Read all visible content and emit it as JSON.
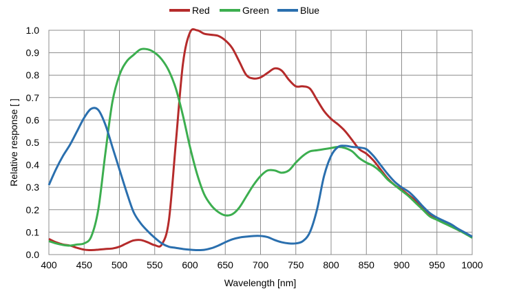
{
  "chart_data": {
    "type": "line",
    "title": "",
    "xlabel": "Wavelength [nm]",
    "ylabel": "Relative response [ ]",
    "xlim": [
      400,
      1000
    ],
    "ylim": [
      0,
      1.0
    ],
    "xticks": [
      "400",
      "450",
      "500",
      "550",
      "600",
      "650",
      "700",
      "750",
      "800",
      "850",
      "900",
      "950",
      "1000"
    ],
    "yticks": [
      "0.0",
      "0.1",
      "0.2",
      "0.3",
      "0.4",
      "0.5",
      "0.6",
      "0.7",
      "0.8",
      "0.9",
      "1.0"
    ],
    "grid": true,
    "legend_position": "top-center",
    "x": [
      400,
      410,
      420,
      430,
      440,
      450,
      460,
      470,
      480,
      490,
      500,
      510,
      520,
      530,
      540,
      550,
      560,
      570,
      580,
      590,
      600,
      610,
      620,
      630,
      640,
      650,
      660,
      670,
      680,
      690,
      700,
      710,
      720,
      730,
      740,
      750,
      760,
      770,
      780,
      790,
      800,
      810,
      820,
      830,
      840,
      850,
      860,
      870,
      880,
      890,
      900,
      910,
      920,
      930,
      940,
      950,
      960,
      970,
      980,
      990,
      1000
    ],
    "series": [
      {
        "name": "Red",
        "color": "#b52b2b",
        "values": [
          0.07,
          0.055,
          0.045,
          0.04,
          0.03,
          0.022,
          0.02,
          0.022,
          0.025,
          0.027,
          0.035,
          0.05,
          0.063,
          0.065,
          0.055,
          0.042,
          0.045,
          0.15,
          0.5,
          0.85,
          0.99,
          1.0,
          0.985,
          0.98,
          0.975,
          0.955,
          0.92,
          0.86,
          0.8,
          0.785,
          0.79,
          0.81,
          0.83,
          0.82,
          0.78,
          0.75,
          0.75,
          0.74,
          0.69,
          0.64,
          0.605,
          0.58,
          0.55,
          0.51,
          0.47,
          0.45,
          0.42,
          0.38,
          0.34,
          0.31,
          0.29,
          0.265,
          0.24,
          0.21,
          0.18,
          0.16,
          0.145,
          0.13,
          0.11,
          0.095,
          0.08
        ]
      },
      {
        "name": "Green",
        "color": "#3cae4f",
        "values": [
          0.06,
          0.05,
          0.043,
          0.04,
          0.045,
          0.05,
          0.08,
          0.2,
          0.45,
          0.68,
          0.8,
          0.86,
          0.89,
          0.915,
          0.915,
          0.9,
          0.87,
          0.82,
          0.74,
          0.62,
          0.48,
          0.36,
          0.27,
          0.22,
          0.19,
          0.175,
          0.18,
          0.21,
          0.26,
          0.31,
          0.35,
          0.375,
          0.375,
          0.365,
          0.375,
          0.41,
          0.44,
          0.46,
          0.465,
          0.47,
          0.475,
          0.48,
          0.475,
          0.46,
          0.43,
          0.41,
          0.395,
          0.37,
          0.335,
          0.31,
          0.285,
          0.26,
          0.23,
          0.2,
          0.17,
          0.155,
          0.14,
          0.125,
          0.11,
          0.093,
          0.075
        ]
      },
      {
        "name": "Blue",
        "color": "#2a6fae",
        "values": [
          0.31,
          0.38,
          0.44,
          0.49,
          0.55,
          0.61,
          0.65,
          0.645,
          0.58,
          0.48,
          0.38,
          0.28,
          0.19,
          0.14,
          0.105,
          0.075,
          0.05,
          0.035,
          0.03,
          0.025,
          0.022,
          0.02,
          0.021,
          0.028,
          0.04,
          0.055,
          0.068,
          0.076,
          0.08,
          0.083,
          0.083,
          0.078,
          0.065,
          0.055,
          0.05,
          0.05,
          0.06,
          0.1,
          0.2,
          0.35,
          0.44,
          0.48,
          0.485,
          0.48,
          0.477,
          0.47,
          0.44,
          0.4,
          0.36,
          0.325,
          0.3,
          0.28,
          0.25,
          0.215,
          0.185,
          0.165,
          0.15,
          0.135,
          0.115,
          0.098,
          0.08
        ]
      }
    ]
  }
}
